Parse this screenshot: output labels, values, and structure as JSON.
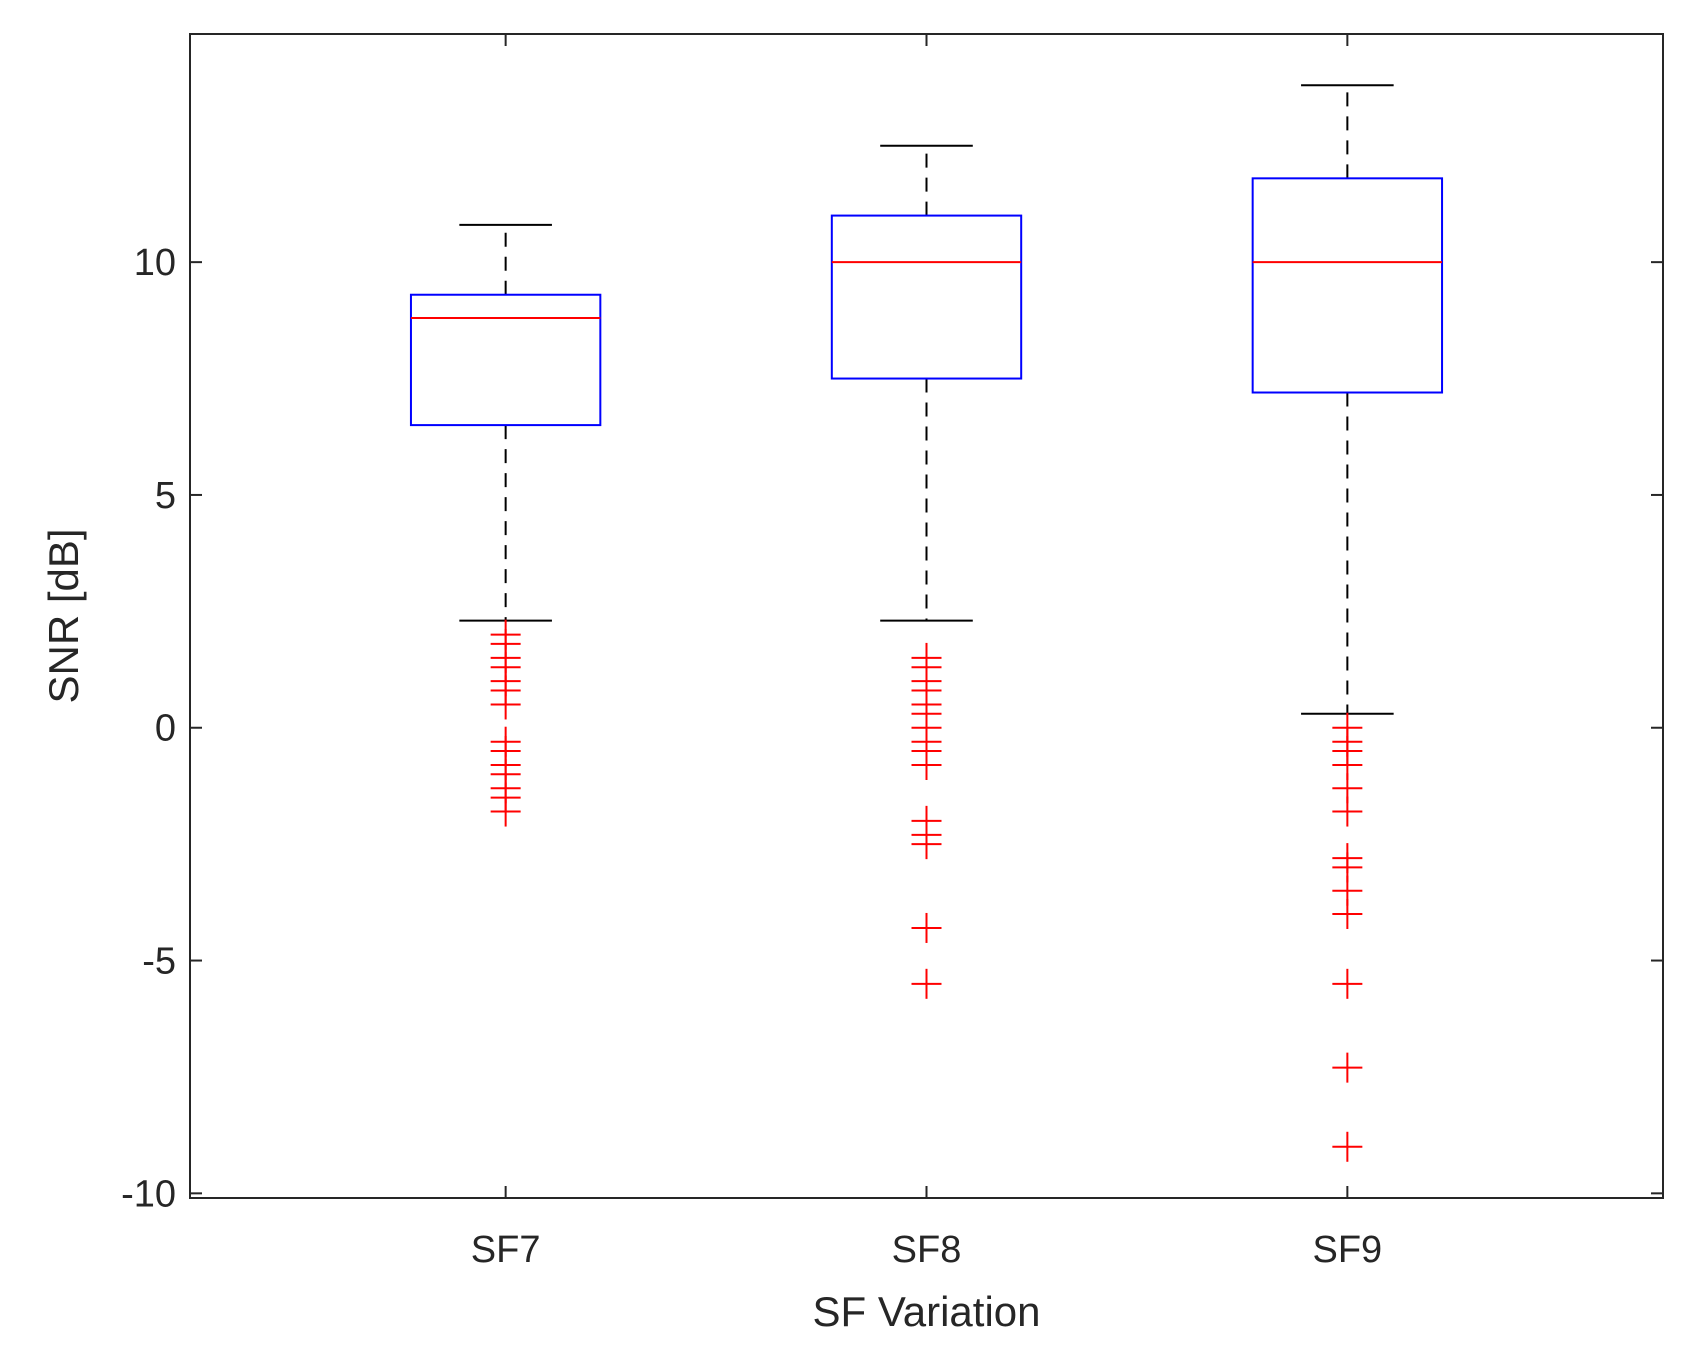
{
  "chart_data": {
    "type": "box",
    "title": "",
    "xlabel": "SF Variation",
    "ylabel": "SNR [dB]",
    "ylim": [
      -10.1,
      14.9
    ],
    "yticks": [
      -10,
      -5,
      0,
      5,
      10
    ],
    "ytick_labels": [
      "-10",
      "-5",
      "0",
      "5",
      "10"
    ],
    "categories": [
      "SF7",
      "SF8",
      "SF9"
    ],
    "series": [
      {
        "name": "SF7",
        "whisker_low": 2.3,
        "q1": 6.5,
        "median": 8.8,
        "q3": 9.3,
        "whisker_high": 10.8,
        "outliers": [
          2.0,
          1.8,
          1.5,
          1.3,
          1.0,
          0.8,
          0.5,
          -0.3,
          -0.5,
          -0.8,
          -1.0,
          -1.3,
          -1.5,
          -1.8
        ]
      },
      {
        "name": "SF8",
        "whisker_low": 2.3,
        "q1": 7.5,
        "median": 10.0,
        "q3": 11.0,
        "whisker_high": 12.5,
        "outliers": [
          1.5,
          1.3,
          1.0,
          0.8,
          0.5,
          0.3,
          0.0,
          -0.3,
          -0.5,
          -0.8,
          -2.0,
          -2.3,
          -2.5,
          -4.3,
          -5.5
        ]
      },
      {
        "name": "SF9",
        "whisker_low": 0.3,
        "q1": 7.2,
        "median": 10.0,
        "q3": 11.8,
        "whisker_high": 13.8,
        "outliers": [
          0.0,
          -0.3,
          -0.5,
          -0.8,
          -1.3,
          -1.8,
          -2.8,
          -3.0,
          -3.5,
          -4.0,
          -5.5,
          -7.3,
          -9.0
        ]
      }
    ],
    "colors": {
      "box": "#0000ff",
      "median": "#ff0000",
      "whisker": "#000000",
      "cap": "#000000",
      "outlier": "#ff0000",
      "axis": "#262626"
    }
  }
}
